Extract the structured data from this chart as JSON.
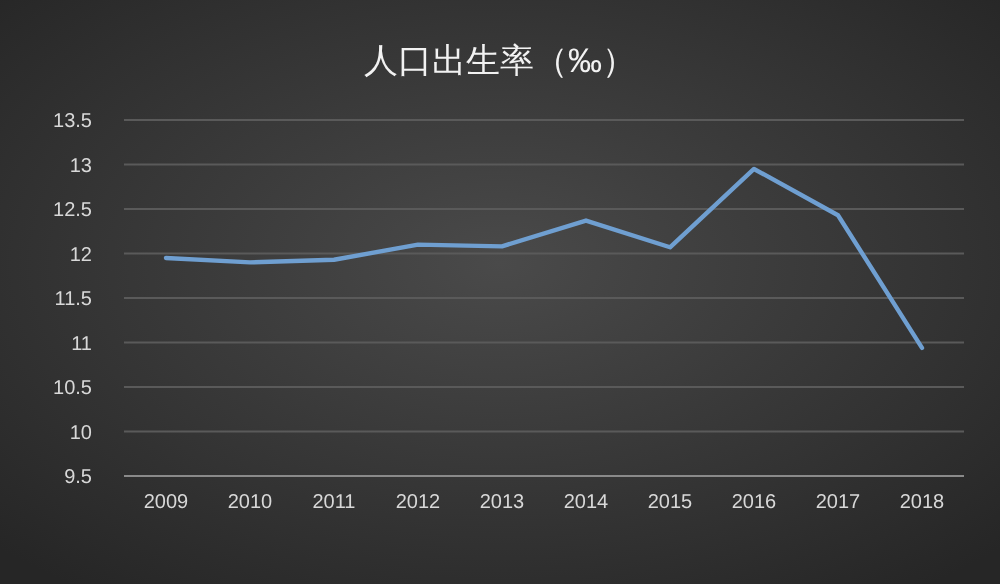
{
  "chart_data": {
    "type": "line",
    "title": "人口出生率（‰）",
    "categories": [
      "2009",
      "2010",
      "2011",
      "2012",
      "2013",
      "2014",
      "2015",
      "2016",
      "2017",
      "2018"
    ],
    "series": [
      {
        "color": "#6f9fd1",
        "values": [
          11.95,
          11.9,
          11.93,
          12.1,
          12.08,
          12.37,
          12.07,
          12.95,
          12.43,
          10.94
        ]
      }
    ],
    "ylim": [
      9.5,
      13.5
    ],
    "yticks": [
      9.5,
      10,
      10.5,
      11,
      11.5,
      12,
      12.5,
      13,
      13.5
    ],
    "grid": "y",
    "line_style": "solid"
  }
}
